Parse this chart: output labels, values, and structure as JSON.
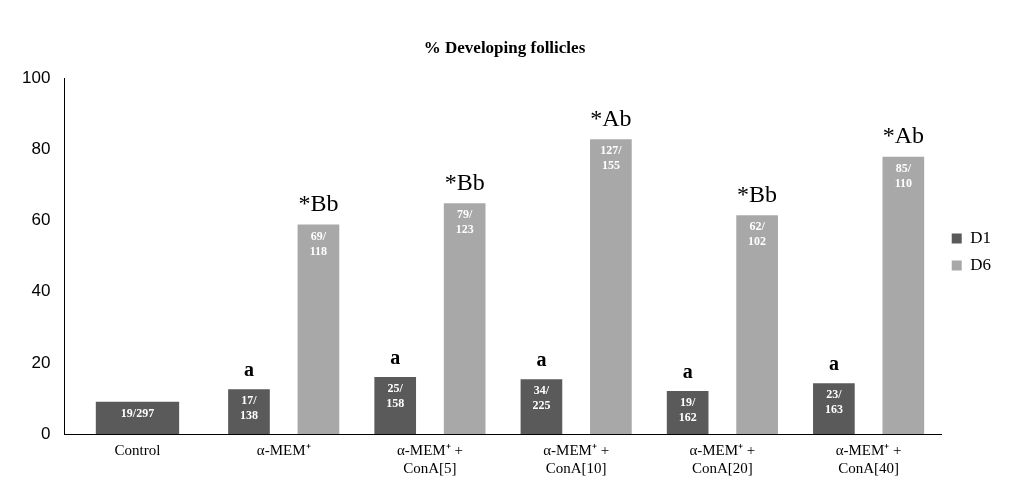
{
  "chart_data": {
    "type": "bar",
    "title": "% Developing follicles",
    "categories": [
      "Control",
      "α-MEM⁺",
      "α-MEM⁺ +\nConA[5]",
      "α-MEM⁺ +\nConA[10]",
      "α-MEM⁺ +\nConA[20]",
      "α-MEM⁺ +\nConA[40]"
    ],
    "series": [
      {
        "name": "D1",
        "color": "#5a5a5a",
        "values": [
          9.1,
          12.6,
          16.0,
          15.4,
          12.1,
          14.3
        ],
        "value_labels": [
          "19/297",
          "17/\n138",
          "25/\n158",
          "34/\n225",
          "19/\n162",
          "23/\n163"
        ]
      },
      {
        "name": "D6",
        "color": "#a8a8a8",
        "values": [
          null,
          58.9,
          64.9,
          82.9,
          61.5,
          78.0
        ],
        "value_labels": [
          null,
          "69/\n118",
          "79/\n123",
          "127/\n155",
          "62/\n102",
          "85/\n110"
        ]
      }
    ],
    "annotations": [
      "a",
      "*Bb",
      "a",
      "*Bb",
      "a",
      "*Ab",
      "a",
      "*Bb",
      "a",
      "*Ab"
    ],
    "ylim": [
      0,
      100
    ],
    "yticks": [
      0,
      20,
      40,
      60,
      80,
      100
    ],
    "grid": false,
    "legend": "right"
  }
}
